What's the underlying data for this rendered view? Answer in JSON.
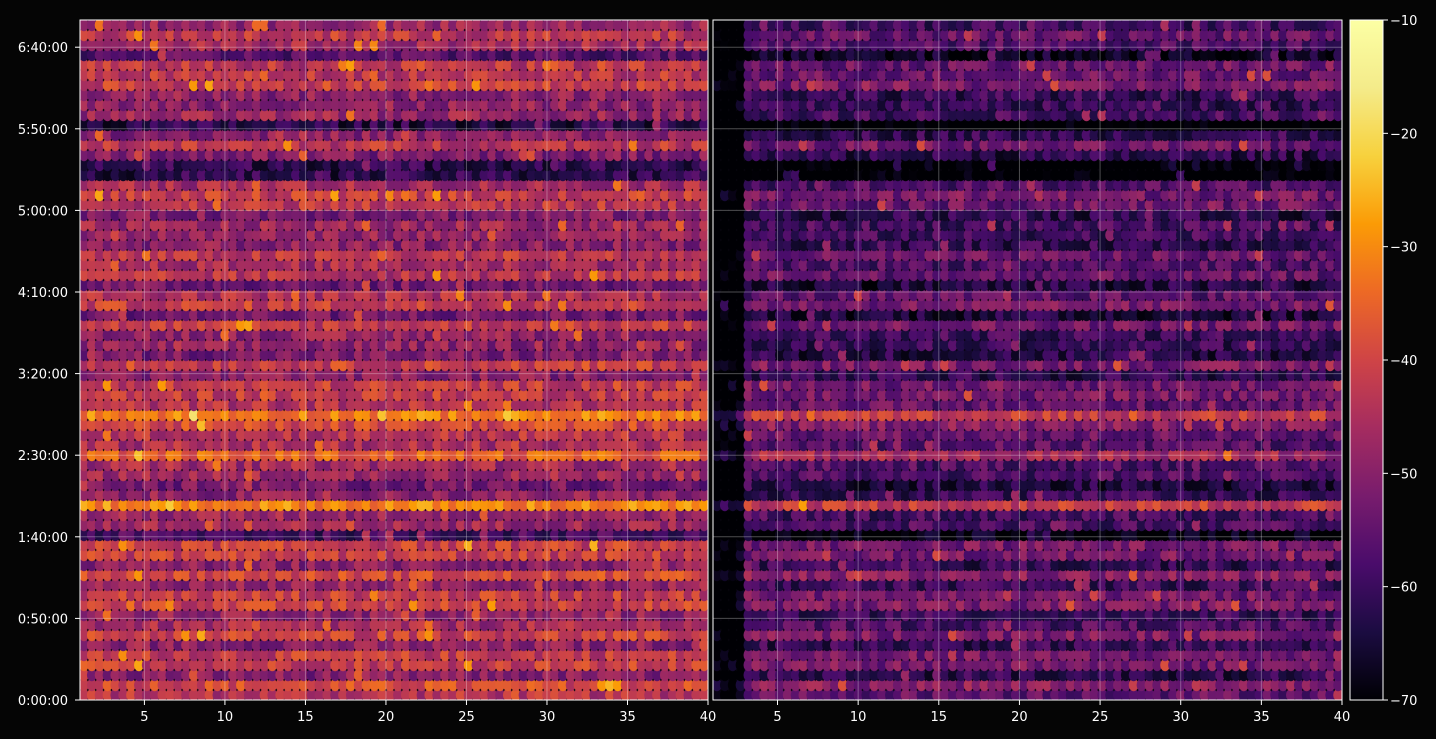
{
  "chart_data": {
    "type": "heatmap",
    "title": "",
    "panels": [
      {
        "name": "",
        "xlim": [
          1,
          40
        ],
        "xticks": [
          5,
          10,
          15,
          20,
          25,
          30,
          35,
          40
        ],
        "xtick_labels": [
          "5",
          "10",
          "15",
          "20",
          "25",
          "30",
          "35",
          "40"
        ]
      },
      {
        "name": "",
        "xlim": [
          1,
          40
        ],
        "xticks": [
          5,
          10,
          15,
          20,
          25,
          30,
          35,
          40
        ],
        "xtick_labels": [
          "5",
          "10",
          "15",
          "20",
          "25",
          "30",
          "35",
          "40"
        ]
      }
    ],
    "y_axis": {
      "label": "",
      "ylim_seconds": [
        0,
        25000
      ],
      "ticks_seconds": [
        0,
        3000,
        6000,
        9000,
        12000,
        15000,
        18000,
        21000,
        24000
      ],
      "tick_labels": [
        "0:00:00",
        "0:50:00",
        "1:40:00",
        "2:30:00",
        "3:20:00",
        "4:10:00",
        "5:00:00",
        "5:50:00",
        "6:40:00"
      ]
    },
    "colorbar": {
      "colormap": "inferno",
      "vmin": -70,
      "vmax": -10,
      "ticks": [
        -70,
        -60,
        -50,
        -40,
        -30,
        -20,
        -10
      ],
      "tick_labels": [
        "−70",
        "−60",
        "−50",
        "−40",
        "−30",
        "−20",
        "−10"
      ]
    },
    "grid": true,
    "background": "#050505"
  }
}
